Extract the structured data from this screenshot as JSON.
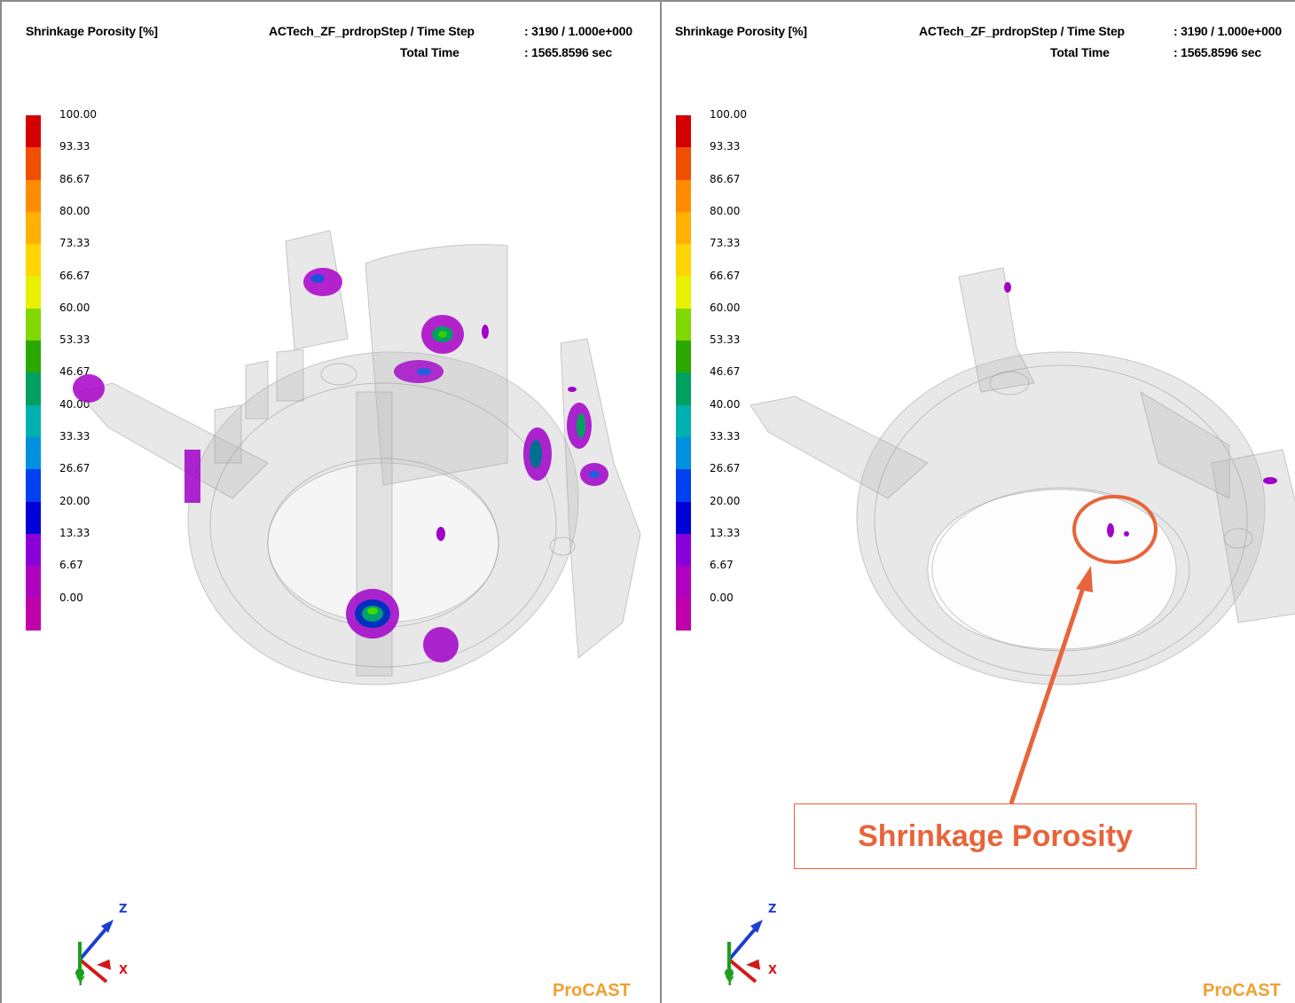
{
  "panels": [
    {
      "id": "left",
      "variable_label": "Shrinkage Porosity [%]",
      "run_label": "ACTech_ZF_prdropStep / Time Step",
      "step_value": ": 3190 / 1.000e+000",
      "total_time_label": "Total  Time",
      "total_time_value": ": 1565.8596 sec",
      "brand": "ProCAST"
    },
    {
      "id": "right",
      "variable_label": "Shrinkage Porosity [%]",
      "run_label": "ACTech_ZF_prdropStep / Time Step",
      "step_value": ": 3190 / 1.000e+000",
      "total_time_label": "Total  Time",
      "total_time_value": ": 1565.8596 sec",
      "brand": "ProCAST"
    }
  ],
  "legend": {
    "ticks": [
      "100.00",
      "93.33",
      "86.67",
      "80.00",
      "73.33",
      "66.67",
      "60.00",
      "53.33",
      "46.67",
      "40.00",
      "33.33",
      "26.67",
      "20.00",
      "13.33",
      "6.67",
      "0.00"
    ],
    "colors": [
      "#d40000",
      "#f04e00",
      "#ff8c00",
      "#ffb000",
      "#ffd400",
      "#e8f000",
      "#80d800",
      "#2aa800",
      "#00a060",
      "#00b0b0",
      "#0090e0",
      "#0040f0",
      "#0000d8",
      "#8a00d8",
      "#b000c0",
      "#c000a8"
    ]
  },
  "axes": {
    "z": "Z",
    "x": "X",
    "y": "Y",
    "colors": {
      "z": "#1a3fd0",
      "x": "#d01a1a",
      "y": "#1aa01a"
    }
  },
  "callout": {
    "text": "Shrinkage Porosity",
    "color": "#e8643a"
  }
}
